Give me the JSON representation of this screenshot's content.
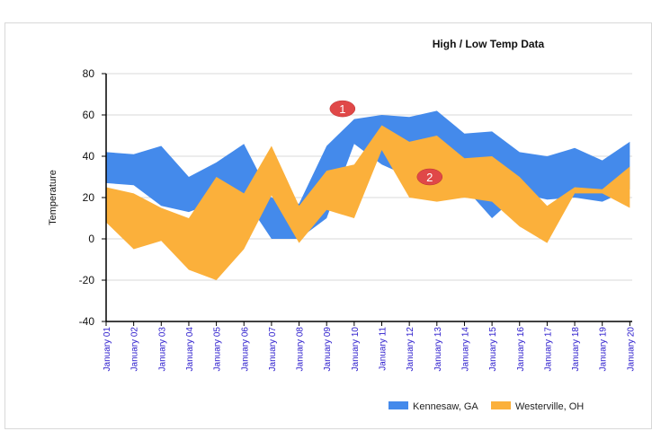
{
  "chart_data": {
    "type": "area",
    "subtype": "range-area",
    "title": "High / Low Temp Data",
    "xlabel": "",
    "ylabel": "Temperature",
    "ylim": [
      -40,
      80
    ],
    "yticks": [
      80,
      60,
      40,
      20,
      0,
      -20,
      -40
    ],
    "grid": true,
    "legend_position": "bottom-right",
    "categories": [
      "January 01",
      "January 02",
      "January 03",
      "January 04",
      "January 05",
      "January 06",
      "January 07",
      "January 08",
      "January 09",
      "January 10",
      "January 11",
      "January 12",
      "January 13",
      "January 14",
      "January 15",
      "January 16",
      "January 17",
      "January 18",
      "January 19",
      "January 20"
    ],
    "series": [
      {
        "name": "Kennesaw, GA",
        "color": "#448aeb",
        "high": [
          42,
          41,
          45,
          30,
          37,
          46,
          20,
          17,
          45,
          58,
          60,
          59,
          62,
          51,
          52,
          42,
          40,
          44,
          38,
          47
        ],
        "low": [
          27,
          26,
          16,
          13,
          18,
          20,
          0,
          0,
          10,
          46,
          36,
          30,
          32,
          25,
          10,
          22,
          19,
          20,
          18,
          24
        ]
      },
      {
        "name": "Westerville, OH",
        "color": "#fbb03b",
        "high": [
          25,
          22,
          15,
          10,
          30,
          22,
          45,
          16,
          33,
          36,
          55,
          47,
          50,
          39,
          40,
          30,
          16,
          25,
          24,
          35
        ],
        "low": [
          8,
          -5,
          -1,
          -15,
          -20,
          -5,
          21,
          -2,
          14,
          10,
          43,
          20,
          18,
          20,
          18,
          6,
          -2,
          22,
          22,
          15
        ]
      }
    ],
    "annotations": [
      {
        "label": "1",
        "category": "January 10",
        "value": 63
      },
      {
        "label": "2",
        "category": "January 13",
        "value": 30
      }
    ]
  }
}
